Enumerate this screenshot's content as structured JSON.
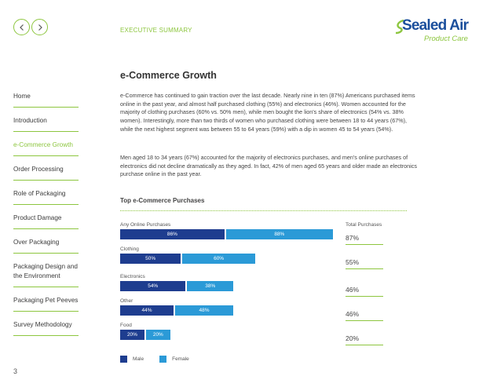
{
  "header": {
    "section_label": "EXECUTIVE SUMMARY",
    "logo_brand": "Sealed Air",
    "logo_tagline": "Product Care",
    "accent_color": "#8dc63f",
    "brand_color": "#1b4f9c"
  },
  "nav": {
    "prev_icon": "chevron-left-icon",
    "next_icon": "chevron-right-icon"
  },
  "sidebar": {
    "items": [
      {
        "label": "Home"
      },
      {
        "label": "Introduction"
      },
      {
        "label": "e-Commerce Growth",
        "active": true
      },
      {
        "label": "Order Processing"
      },
      {
        "label": "Role of Packaging"
      },
      {
        "label": "Product Damage"
      },
      {
        "label": "Over Packaging"
      },
      {
        "label": "Packaging Design and the Environment"
      },
      {
        "label": "Packaging Pet Peeves"
      },
      {
        "label": "Survey Methodology"
      }
    ]
  },
  "page_number": "3",
  "main": {
    "title": "e-Commerce Growth",
    "paragraph1": "e-Commerce has continued to gain traction over the last decade. Nearly nine in ten (87%) Americans purchased items online in the past year, and almost half purchased clothing (55%) and electronics (46%). Women accounted for the majority of clothing purchases (60% vs. 50% men), while men bought the lion's share of electronics (54% vs. 38% women). Interestingly, more than two thirds of women who purchased clothing were between 18 to 44 years (67%), while the next highest segment was between 55 to 64 years (59%) with a dip in women 45 to 54 years (54%).",
    "paragraph2": "Men aged 18 to 34 years (67%) accounted for the majority of electronics purchases, and men's online purchases of electronics did not decline dramatically as they aged. In fact, 42% of men aged 65 years and older made an electronics purchase online in the past year."
  },
  "chart_data": {
    "type": "bar",
    "title": "Top e-Commerce Purchases",
    "total_header": "Total Purchases",
    "categories": [
      "Any Online Purchases",
      "Clothing",
      "Electronics",
      "Other",
      "Food"
    ],
    "series": [
      {
        "name": "Male",
        "color": "#1e3d8f",
        "values": [
          86,
          50,
          54,
          44,
          20
        ],
        "labels": [
          "86%",
          "50%",
          "54%",
          "44%",
          "20%"
        ]
      },
      {
        "name": "Female",
        "color": "#2b9ad7",
        "values": [
          88,
          60,
          38,
          48,
          20
        ],
        "labels": [
          "88%",
          "60%",
          "38%",
          "48%",
          "20%"
        ]
      }
    ],
    "totals": [
      "87%",
      "55%",
      "46%",
      "46%",
      "20%"
    ],
    "legend": [
      "Male",
      "Female"
    ]
  }
}
